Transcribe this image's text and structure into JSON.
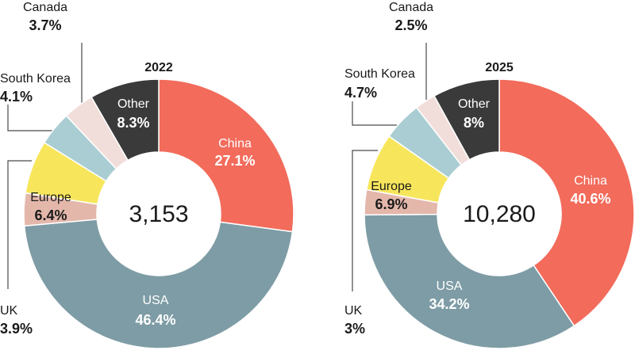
{
  "colors": {
    "China": "#F26B5B",
    "USA": "#7E9CA5",
    "UK": "#E4B7AB",
    "Europe": "#F7E65C",
    "South Korea": "#A9CDD2",
    "Canada": "#F1DEDA",
    "Other": "#3A3A3A",
    "line": "#4A4A4A",
    "text_dark": "#1A1A1A",
    "text_light": "#FFFFFF"
  },
  "chart_data": [
    {
      "type": "pie",
      "title": "2022",
      "total": "3,153",
      "slices": [
        {
          "label": "China",
          "pct_label": "27.1%",
          "value": 27.1
        },
        {
          "label": "USA",
          "pct_label": "46.4%",
          "value": 46.4
        },
        {
          "label": "UK",
          "pct_label": "3.9%",
          "value": 3.9
        },
        {
          "label": "Europe",
          "pct_label": "6.4%",
          "value": 6.4
        },
        {
          "label": "South Korea",
          "pct_label": "4.1%",
          "value": 4.1
        },
        {
          "label": "Canada",
          "pct_label": "3.7%",
          "value": 3.7
        },
        {
          "label": "Other",
          "pct_label": "8.3%",
          "value": 8.3
        }
      ]
    },
    {
      "type": "pie",
      "title": "2025",
      "total": "10,280",
      "slices": [
        {
          "label": "China",
          "pct_label": "40.6%",
          "value": 40.6
        },
        {
          "label": "USA",
          "pct_label": "34.2%",
          "value": 34.2
        },
        {
          "label": "UK",
          "pct_label": "3%",
          "value": 3.0
        },
        {
          "label": "Europe",
          "pct_label": "6.9%",
          "value": 6.9
        },
        {
          "label": "South Korea",
          "pct_label": "4.7%",
          "value": 4.7
        },
        {
          "label": "Canada",
          "pct_label": "2.5%",
          "value": 2.5
        },
        {
          "label": "Other",
          "pct_label": "8%",
          "value": 8.0
        }
      ]
    }
  ]
}
